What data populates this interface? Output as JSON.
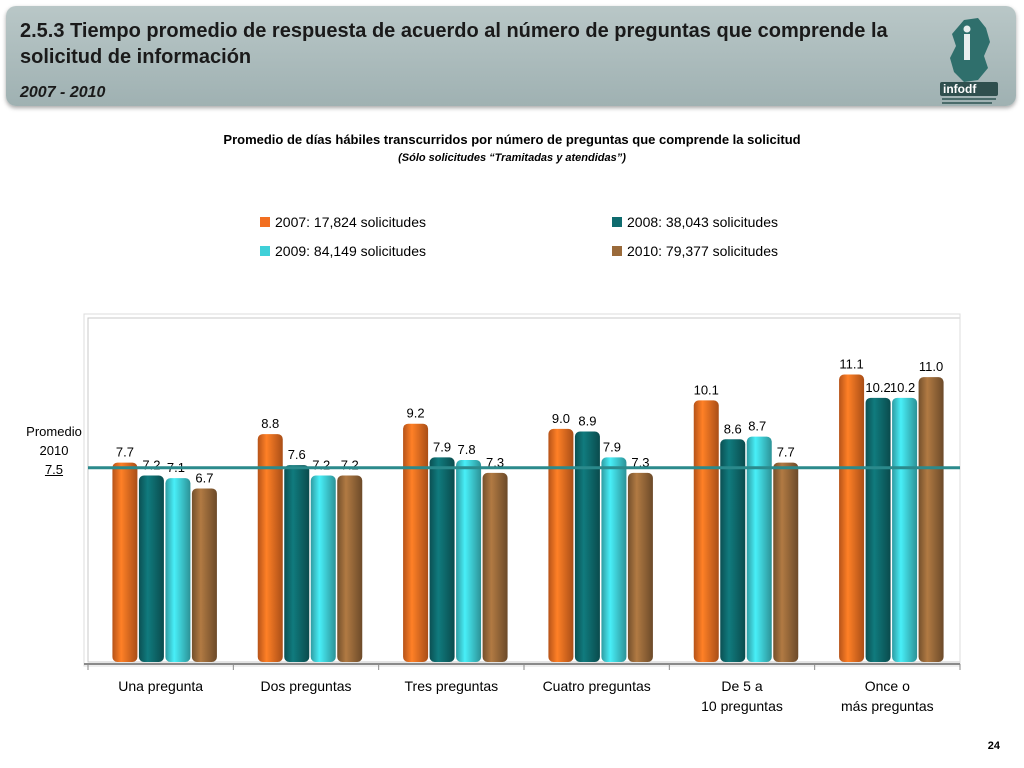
{
  "header": {
    "title": "2.5.3 Tiempo promedio de respuesta de acuerdo al número de preguntas que comprende la solicitud de información",
    "years": "2007 - 2010",
    "logo_text": "infodf"
  },
  "page_number": "24",
  "average_label": {
    "line1": "Promedio",
    "line2": "2010",
    "value": "7.5"
  },
  "chart_data": {
    "type": "bar",
    "title": "Promedio de días hábiles transcurridos por número de preguntas que comprende la solicitud",
    "subtitle": "(Sólo solicitudes “Tramitadas y atendidas”)",
    "categories": [
      "Una pregunta",
      "Dos preguntas",
      "Tres preguntas",
      "Cuatro preguntas",
      "De 5 a 10 preguntas",
      "Once o más preguntas"
    ],
    "series": [
      {
        "name": "2007: 17,824 solicitudes",
        "color": "#f26f21",
        "values": [
          7.7,
          8.8,
          9.2,
          9.0,
          10.1,
          11.1
        ]
      },
      {
        "name": "2008: 38,043 solicitudes",
        "color": "#0e6b6e",
        "values": [
          7.2,
          7.6,
          7.9,
          8.9,
          8.6,
          10.2
        ]
      },
      {
        "name": "2009: 84,149 solicitudes",
        "color": "#3fd0d8",
        "values": [
          7.1,
          7.2,
          7.8,
          7.9,
          8.7,
          10.2
        ]
      },
      {
        "name": "2010: 79,377 solicitudes",
        "color": "#9a6a3a",
        "values": [
          6.7,
          7.2,
          7.3,
          7.3,
          7.7,
          11.0
        ]
      }
    ],
    "average_line": {
      "value": 7.5,
      "color": "#2b8a8c"
    },
    "ylim": [
      0,
      12
    ],
    "legend_position": "top",
    "grid": false
  }
}
